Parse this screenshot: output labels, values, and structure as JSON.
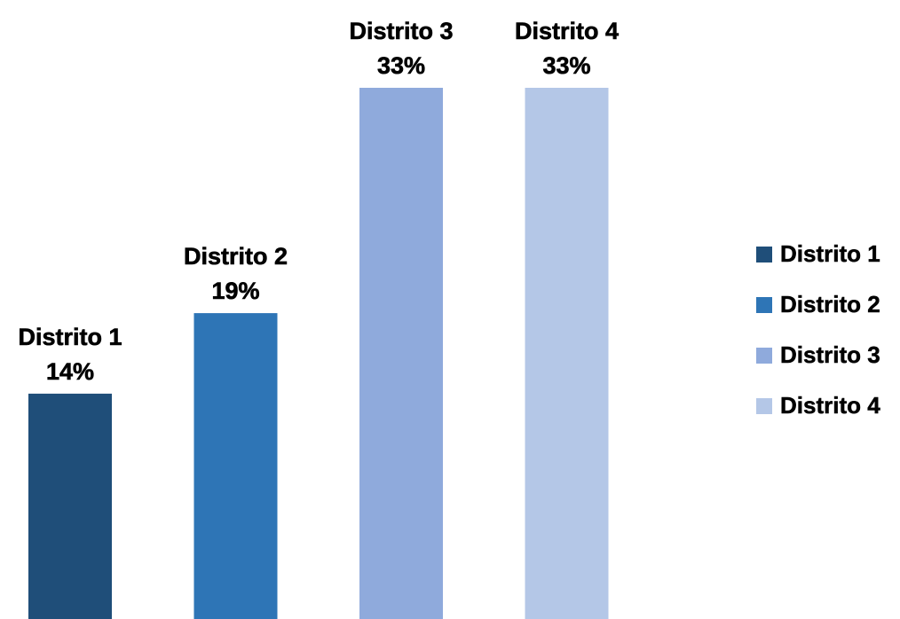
{
  "chart_data": {
    "type": "bar",
    "categories": [
      "Distrito 1",
      "Distrito 2",
      "Distrito 3",
      "Distrito 4"
    ],
    "values": [
      14,
      19,
      33,
      33
    ],
    "value_labels": [
      "14%",
      "19%",
      "33%",
      "33%"
    ],
    "unit": "%",
    "ylim": [
      0,
      33
    ],
    "grid": false,
    "legend_position": "right",
    "series_colors": [
      "#1f4e79",
      "#2e75b6",
      "#8faadc",
      "#b4c7e7"
    ],
    "legend": [
      {
        "label": "Distrito 1",
        "color": "#1f4e79"
      },
      {
        "label": "Distrito 2",
        "color": "#2e75b6"
      },
      {
        "label": "Distrito 3",
        "color": "#8faadc"
      },
      {
        "label": "Distrito 4",
        "color": "#b4c7e7"
      }
    ]
  }
}
